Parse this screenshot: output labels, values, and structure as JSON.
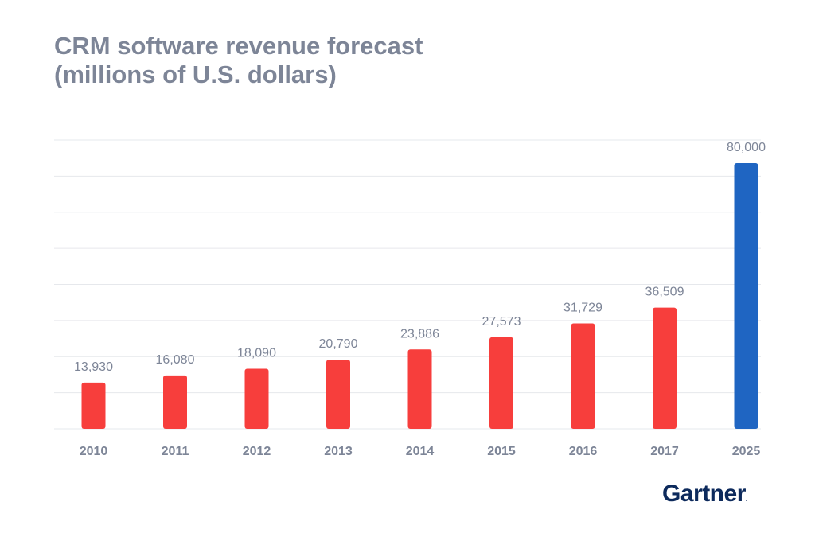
{
  "chart_data": {
    "type": "bar",
    "title": "CRM software revenue forecast",
    "subtitle": "(millions of U.S. dollars)",
    "categories": [
      "2010",
      "2011",
      "2012",
      "2013",
      "2014",
      "2015",
      "2016",
      "2017",
      "2025"
    ],
    "values": [
      13930,
      16080,
      18090,
      20790,
      23886,
      27573,
      31729,
      36509,
      80000
    ],
    "value_labels": [
      "13,930",
      "16,080",
      "18,090",
      "20,790",
      "23,886",
      "27,573",
      "31,729",
      "36,509",
      "80,000"
    ],
    "forecast_index": 8,
    "xlabel": "",
    "ylabel": "",
    "ylim": [
      0,
      80000
    ],
    "grid": true
  },
  "colors": {
    "actual": "#f73e3c",
    "forecast": "#1f65c2",
    "label": "#7d8597",
    "grid": "#e6e8ec"
  },
  "source": {
    "logo_text": "Gartner",
    "logo_mark": "."
  }
}
